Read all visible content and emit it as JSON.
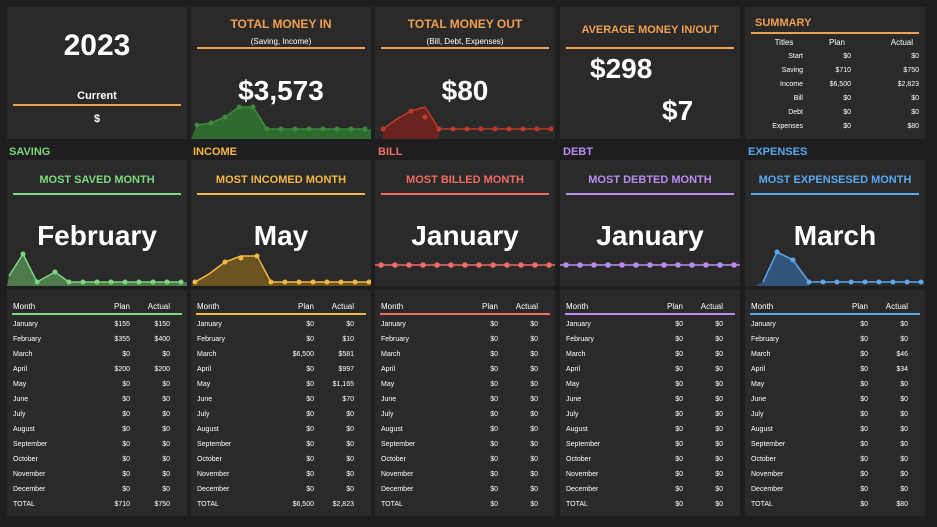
{
  "year": "2023",
  "current_label": "Current",
  "current_value": "$",
  "money_in": {
    "title": "TOTAL MONEY IN",
    "sub": "(Saving, Income)",
    "value": "$3,573"
  },
  "money_out": {
    "title": "TOTAL MONEY OUT",
    "sub": "(Bill, Debt, Expenses)",
    "value": "$80"
  },
  "average": {
    "title": "AVERAGE MONEY IN/OUT",
    "in_value": "$298",
    "out_value": "$7"
  },
  "summary": {
    "title": "SUMMARY",
    "headers": [
      "Titles",
      "Plan",
      "Actual"
    ],
    "rows": [
      [
        "Start",
        "$0",
        "$0"
      ],
      [
        "Saving",
        "$710",
        "$750"
      ],
      [
        "Income",
        "$6,500",
        "$2,823"
      ],
      [
        "Bill",
        "$0",
        "$0"
      ],
      [
        "Debt",
        "$0",
        "$0"
      ],
      [
        "Expenses",
        "$0",
        "$80"
      ]
    ]
  },
  "categories": [
    {
      "section": "SAVING",
      "title": "MOST SAVED MONTH",
      "month": "February",
      "color": "#7dd87d",
      "plan": [
        "$155",
        "$355",
        "$0",
        "$200",
        "$0",
        "$0",
        "$0",
        "$0",
        "$0",
        "$0",
        "$0",
        "$0",
        "$710"
      ],
      "actual": [
        "$150",
        "$400",
        "$0",
        "$200",
        "$0",
        "$0",
        "$0",
        "$0",
        "$0",
        "$0",
        "$0",
        "$0",
        "$750"
      ]
    },
    {
      "section": "INCOME",
      "title": "MOST INCOMED MONTH",
      "month": "May",
      "color": "#f5b942",
      "plan": [
        "$0",
        "$0",
        "$6,500",
        "$0",
        "$0",
        "$0",
        "$0",
        "$0",
        "$0",
        "$0",
        "$0",
        "$0",
        "$6,500"
      ],
      "actual": [
        "$0",
        "$10",
        "$581",
        "$997",
        "$1,165",
        "$70",
        "$0",
        "$0",
        "$0",
        "$0",
        "$0",
        "$0",
        "$2,823"
      ]
    },
    {
      "section": "BILL",
      "title": "MOST BILLED MONTH",
      "month": "January",
      "color": "#f06b63",
      "plan": [
        "$0",
        "$0",
        "$0",
        "$0",
        "$0",
        "$0",
        "$0",
        "$0",
        "$0",
        "$0",
        "$0",
        "$0",
        "$0"
      ],
      "actual": [
        "$0",
        "$0",
        "$0",
        "$0",
        "$0",
        "$0",
        "$0",
        "$0",
        "$0",
        "$0",
        "$0",
        "$0",
        "$0"
      ]
    },
    {
      "section": "DEBT",
      "title": "MOST DEBTED MONTH",
      "month": "January",
      "color": "#b98cf0",
      "plan": [
        "$0",
        "$0",
        "$0",
        "$0",
        "$0",
        "$0",
        "$0",
        "$0",
        "$0",
        "$0",
        "$0",
        "$0",
        "$0"
      ],
      "actual": [
        "$0",
        "$0",
        "$0",
        "$0",
        "$0",
        "$0",
        "$0",
        "$0",
        "$0",
        "$0",
        "$0",
        "$0",
        "$0"
      ]
    },
    {
      "section": "EXPENSES",
      "title": "MOST EXPENSESED MONTH",
      "month": "March",
      "color": "#5aa8f0",
      "plan": [
        "$0",
        "$0",
        "$0",
        "$0",
        "$0",
        "$0",
        "$0",
        "$0",
        "$0",
        "$0",
        "$0",
        "$0",
        "$0"
      ],
      "actual": [
        "$0",
        "$0",
        "$46",
        "$34",
        "$0",
        "$0",
        "$0",
        "$0",
        "$0",
        "$0",
        "$0",
        "$0",
        "$80"
      ]
    }
  ],
  "table_headers": [
    "Month",
    "Plan",
    "Actual"
  ],
  "months": [
    "January",
    "February",
    "March",
    "April",
    "May",
    "June",
    "July",
    "August",
    "September",
    "October",
    "November",
    "December",
    "TOTAL"
  ],
  "colors": {
    "orange": "#f0a050",
    "panel": "#2a2a2a",
    "background": "#1e1e1e",
    "money_in": "#3d8a3d",
    "money_out": "#c0392b"
  }
}
